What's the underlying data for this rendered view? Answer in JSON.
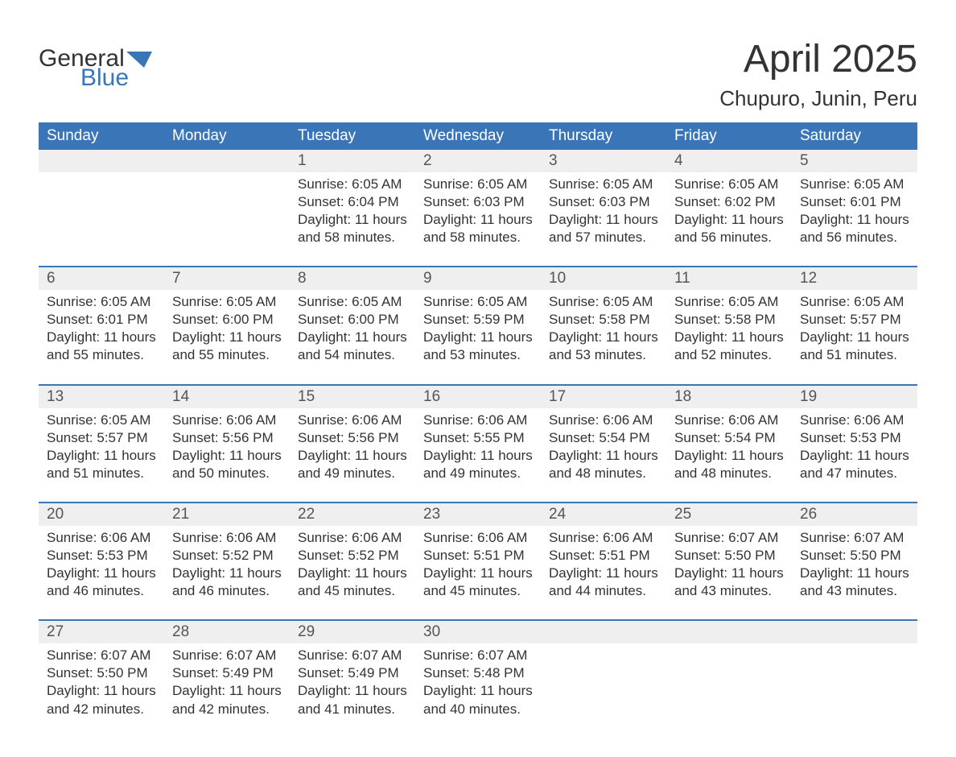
{
  "brand": {
    "word1": "General",
    "word2": "Blue",
    "accent_color": "#3a76b7"
  },
  "title": "April 2025",
  "location": "Chupuro, Junin, Peru",
  "colors": {
    "header_bg": "#3a76b7",
    "header_text": "#ffffff",
    "daynum_bg": "#efefef",
    "text": "#333333",
    "rule": "#3a76b7",
    "page_bg": "#ffffff"
  },
  "typography": {
    "title_fontsize": 48,
    "location_fontsize": 26,
    "dow_fontsize": 19,
    "daynum_fontsize": 19,
    "body_fontsize": 17
  },
  "days_of_week": [
    "Sunday",
    "Monday",
    "Tuesday",
    "Wednesday",
    "Thursday",
    "Friday",
    "Saturday"
  ],
  "labels": {
    "sunrise": "Sunrise: ",
    "sunset": "Sunset: ",
    "daylight": "Daylight: "
  },
  "weeks": [
    [
      null,
      null,
      {
        "n": "1",
        "sunrise": "6:05 AM",
        "sunset": "6:04 PM",
        "daylight": "11 hours and 58 minutes."
      },
      {
        "n": "2",
        "sunrise": "6:05 AM",
        "sunset": "6:03 PM",
        "daylight": "11 hours and 58 minutes."
      },
      {
        "n": "3",
        "sunrise": "6:05 AM",
        "sunset": "6:03 PM",
        "daylight": "11 hours and 57 minutes."
      },
      {
        "n": "4",
        "sunrise": "6:05 AM",
        "sunset": "6:02 PM",
        "daylight": "11 hours and 56 minutes."
      },
      {
        "n": "5",
        "sunrise": "6:05 AM",
        "sunset": "6:01 PM",
        "daylight": "11 hours and 56 minutes."
      }
    ],
    [
      {
        "n": "6",
        "sunrise": "6:05 AM",
        "sunset": "6:01 PM",
        "daylight": "11 hours and 55 minutes."
      },
      {
        "n": "7",
        "sunrise": "6:05 AM",
        "sunset": "6:00 PM",
        "daylight": "11 hours and 55 minutes."
      },
      {
        "n": "8",
        "sunrise": "6:05 AM",
        "sunset": "6:00 PM",
        "daylight": "11 hours and 54 minutes."
      },
      {
        "n": "9",
        "sunrise": "6:05 AM",
        "sunset": "5:59 PM",
        "daylight": "11 hours and 53 minutes."
      },
      {
        "n": "10",
        "sunrise": "6:05 AM",
        "sunset": "5:58 PM",
        "daylight": "11 hours and 53 minutes."
      },
      {
        "n": "11",
        "sunrise": "6:05 AM",
        "sunset": "5:58 PM",
        "daylight": "11 hours and 52 minutes."
      },
      {
        "n": "12",
        "sunrise": "6:05 AM",
        "sunset": "5:57 PM",
        "daylight": "11 hours and 51 minutes."
      }
    ],
    [
      {
        "n": "13",
        "sunrise": "6:05 AM",
        "sunset": "5:57 PM",
        "daylight": "11 hours and 51 minutes."
      },
      {
        "n": "14",
        "sunrise": "6:06 AM",
        "sunset": "5:56 PM",
        "daylight": "11 hours and 50 minutes."
      },
      {
        "n": "15",
        "sunrise": "6:06 AM",
        "sunset": "5:56 PM",
        "daylight": "11 hours and 49 minutes."
      },
      {
        "n": "16",
        "sunrise": "6:06 AM",
        "sunset": "5:55 PM",
        "daylight": "11 hours and 49 minutes."
      },
      {
        "n": "17",
        "sunrise": "6:06 AM",
        "sunset": "5:54 PM",
        "daylight": "11 hours and 48 minutes."
      },
      {
        "n": "18",
        "sunrise": "6:06 AM",
        "sunset": "5:54 PM",
        "daylight": "11 hours and 48 minutes."
      },
      {
        "n": "19",
        "sunrise": "6:06 AM",
        "sunset": "5:53 PM",
        "daylight": "11 hours and 47 minutes."
      }
    ],
    [
      {
        "n": "20",
        "sunrise": "6:06 AM",
        "sunset": "5:53 PM",
        "daylight": "11 hours and 46 minutes."
      },
      {
        "n": "21",
        "sunrise": "6:06 AM",
        "sunset": "5:52 PM",
        "daylight": "11 hours and 46 minutes."
      },
      {
        "n": "22",
        "sunrise": "6:06 AM",
        "sunset": "5:52 PM",
        "daylight": "11 hours and 45 minutes."
      },
      {
        "n": "23",
        "sunrise": "6:06 AM",
        "sunset": "5:51 PM",
        "daylight": "11 hours and 45 minutes."
      },
      {
        "n": "24",
        "sunrise": "6:06 AM",
        "sunset": "5:51 PM",
        "daylight": "11 hours and 44 minutes."
      },
      {
        "n": "25",
        "sunrise": "6:07 AM",
        "sunset": "5:50 PM",
        "daylight": "11 hours and 43 minutes."
      },
      {
        "n": "26",
        "sunrise": "6:07 AM",
        "sunset": "5:50 PM",
        "daylight": "11 hours and 43 minutes."
      }
    ],
    [
      {
        "n": "27",
        "sunrise": "6:07 AM",
        "sunset": "5:50 PM",
        "daylight": "11 hours and 42 minutes."
      },
      {
        "n": "28",
        "sunrise": "6:07 AM",
        "sunset": "5:49 PM",
        "daylight": "11 hours and 42 minutes."
      },
      {
        "n": "29",
        "sunrise": "6:07 AM",
        "sunset": "5:49 PM",
        "daylight": "11 hours and 41 minutes."
      },
      {
        "n": "30",
        "sunrise": "6:07 AM",
        "sunset": "5:48 PM",
        "daylight": "11 hours and 40 minutes."
      },
      null,
      null,
      null
    ]
  ]
}
